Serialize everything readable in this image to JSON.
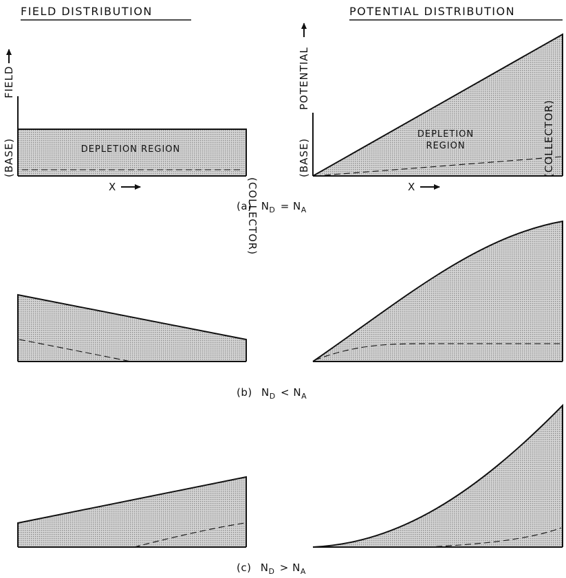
{
  "headings": {
    "field": "FIELD DISTRIBUTION",
    "potential": "POTENTIAL DISTRIBUTION"
  },
  "axis_labels": {
    "field": "FIELD",
    "potential": "POTENTIAL",
    "x": "X"
  },
  "region_labels": {
    "base": "(BASE)",
    "collector": "(COLLECTOR)",
    "depletion_region": "DEPLETION REGION",
    "depletion_line1": "DEPLETION",
    "depletion_line2": "REGION"
  },
  "captions": {
    "a": {
      "prefix": "(a)",
      "lhs": "N",
      "lhs_sub": "D",
      "op": "=",
      "rhs": "N",
      "rhs_sub": "A"
    },
    "b": {
      "prefix": "(b)",
      "lhs": "N",
      "lhs_sub": "D",
      "op": "<",
      "rhs": "N",
      "rhs_sub": "A"
    },
    "c": {
      "prefix": "(c)",
      "lhs": "N",
      "lhs_sub": "D",
      "op": ">",
      "rhs": "N",
      "rhs_sub": "A"
    }
  },
  "colors": {
    "ink": "#111111",
    "shading": "#c8c8c8"
  }
}
